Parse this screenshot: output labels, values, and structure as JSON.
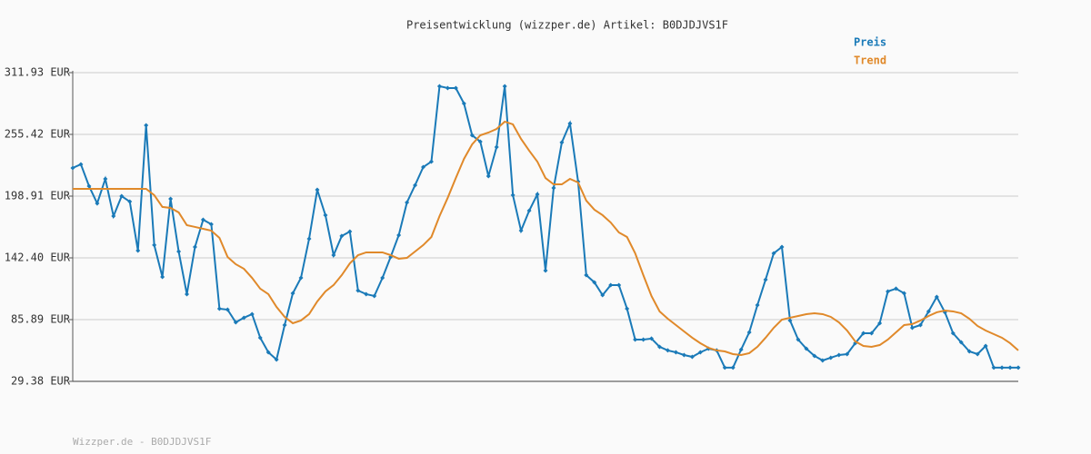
{
  "chart_data": {
    "type": "line",
    "title": "Preisentwicklung (wizzper.de) Artikel: B0DJDJVS1F",
    "footer": "Wizzper.de - B0DJDJVS1F",
    "ylim": [
      29.38,
      311.93
    ],
    "yticks": [
      {
        "value": 29.38,
        "label": "29.38 EUR"
      },
      {
        "value": 85.89,
        "label": "85.89 EUR"
      },
      {
        "value": 142.4,
        "label": "142.40 EUR"
      },
      {
        "value": 198.91,
        "label": "198.91 EUR"
      },
      {
        "value": 255.42,
        "label": "255.42 EUR"
      },
      {
        "value": 311.93,
        "label": "311.93 EUR"
      }
    ],
    "grid": true,
    "legend": "top-right",
    "series": [
      {
        "name": "Preis",
        "color": "#1a7ab8",
        "markers": true,
        "values": [
          224.7,
          228.0,
          208.1,
          192.3,
          214.7,
          180.6,
          198.9,
          193.9,
          149.1,
          263.7,
          154.1,
          125.0,
          196.4,
          148.2,
          109.2,
          152.4,
          177.3,
          173.2,
          95.9,
          95.0,
          83.4,
          87.6,
          90.9,
          69.3,
          56.0,
          49.3,
          80.9,
          110.0,
          124.1,
          159.9,
          204.7,
          181.5,
          144.9,
          162.4,
          166.5,
          112.5,
          109.2,
          107.5,
          124.1,
          143.2,
          163.2,
          193.1,
          208.9,
          225.5,
          230.5,
          299.5,
          297.8,
          297.8,
          283.7,
          254.6,
          248.8,
          217.2,
          243.8,
          299.5,
          199.8,
          167.3,
          185.6,
          200.6,
          130.8,
          206.4,
          248.0,
          265.4,
          212.2,
          126.6,
          120.0,
          108.3,
          117.5,
          117.5,
          95.9,
          67.6,
          67.6,
          68.5,
          61.0,
          57.7,
          56.0,
          53.5,
          51.8,
          56.0,
          59.3,
          57.7,
          41.9,
          41.9,
          58.5,
          74.3,
          99.2,
          122.5,
          146.6,
          152.4,
          85.1,
          67.6,
          59.3,
          52.7,
          48.5,
          51.0,
          53.5,
          54.3,
          64.3,
          73.4,
          73.4,
          82.6,
          111.7,
          114.2,
          110.0,
          78.4,
          80.9,
          93.4,
          106.7,
          92.6,
          73.4,
          65.1,
          56.8,
          54.3,
          61.8,
          41.9,
          41.9,
          41.9,
          41.9
        ]
      },
      {
        "name": "Trend",
        "color": "#e0892a",
        "markers": false,
        "values": [
          205.6,
          205.6,
          205.6,
          205.6,
          205.6,
          205.6,
          205.6,
          205.6,
          205.6,
          205.6,
          199.8,
          189.0,
          188.1,
          184.0,
          172.3,
          170.7,
          169.0,
          167.3,
          160.7,
          143.2,
          136.6,
          132.4,
          124.1,
          114.2,
          109.2,
          97.5,
          88.4,
          82.6,
          85.1,
          90.9,
          102.5,
          111.7,
          117.5,
          126.6,
          137.4,
          144.9,
          147.4,
          147.4,
          147.4,
          144.9,
          141.6,
          142.4,
          148.2,
          154.1,
          161.5,
          180.6,
          197.3,
          215.5,
          233.0,
          246.3,
          254.6,
          257.1,
          260.4,
          267.1,
          264.6,
          251.3,
          240.5,
          230.5,
          215.5,
          209.7,
          209.7,
          214.7,
          211.4,
          194.8,
          186.5,
          181.5,
          174.8,
          165.7,
          161.5,
          146.6,
          126.6,
          107.5,
          93.4,
          86.7,
          80.9,
          75.1,
          69.3,
          64.3,
          60.1,
          57.7,
          56.8,
          54.3,
          53.5,
          55.2,
          61.0,
          69.3,
          78.4,
          85.9,
          87.6,
          89.2,
          90.9,
          91.7,
          90.9,
          88.4,
          83.4,
          75.9,
          66.0,
          61.8,
          61.0,
          62.6,
          67.6,
          74.3,
          80.9,
          81.8,
          85.1,
          89.2,
          92.6,
          94.2,
          93.4,
          91.7,
          86.7,
          80.1,
          75.9,
          72.6,
          69.3,
          64.3,
          57.7
        ]
      }
    ]
  }
}
